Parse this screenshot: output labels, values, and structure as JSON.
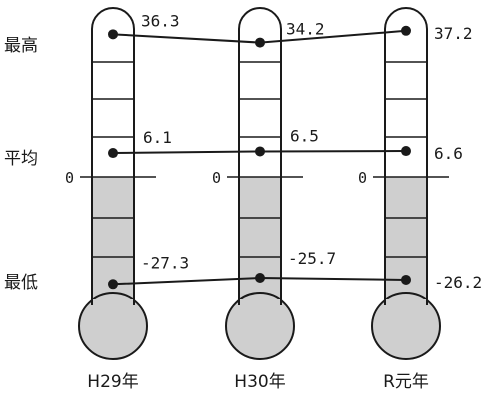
{
  "chart_data": {
    "type": "line",
    "categories": [
      "H29年",
      "H30年",
      "R元年"
    ],
    "zero_label": "0",
    "series": [
      {
        "name": "最高",
        "values": [
          36.3,
          34.2,
          37.2
        ],
        "labels": [
          "36.3",
          "34.2",
          "37.2"
        ]
      },
      {
        "name": "平均",
        "values": [
          6.1,
          6.5,
          6.6
        ],
        "labels": [
          "6.1",
          "6.5",
          "6.6"
        ]
      },
      {
        "name": "最低",
        "values": [
          -27.3,
          -25.7,
          -26.2
        ],
        "labels": [
          "-27.3",
          "-25.7",
          "-26.2"
        ]
      }
    ],
    "colors": {
      "line": "#1a1a1a",
      "tube_fill": "#cfcfcf",
      "outline": "#1a1a1a",
      "background": "#ffffff"
    }
  }
}
